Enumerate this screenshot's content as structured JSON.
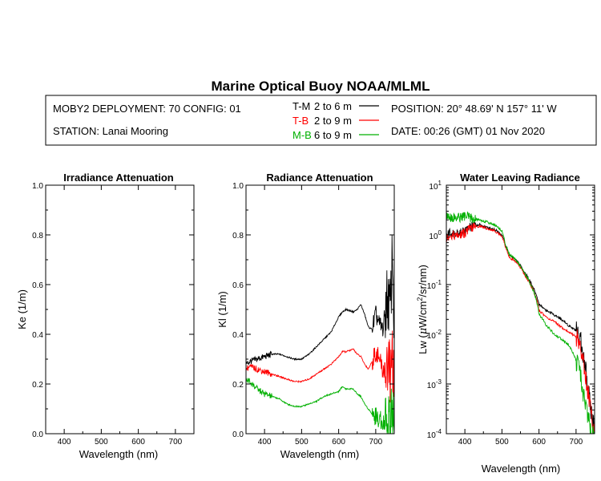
{
  "title": "Marine Optical Buoy NOAA/MLML",
  "header": {
    "deployment": "MOBY2 DEPLOYMENT: 70 CONFIG: 01",
    "station": "STATION: Lanai Mooring",
    "legend": [
      {
        "code": "T-M",
        "range": "2 to 6  m",
        "color": "#000000"
      },
      {
        "code": "T-B",
        "range": "2 to 9  m",
        "color": "#ff0000"
      },
      {
        "code": "M-B",
        "range": "6 to 9  m",
        "color": "#00b000"
      }
    ],
    "position": "POSITION: 20° 48.69' N   157° 11' W",
    "date": "DATE: 00:26 (GMT) 01 Nov 2020"
  },
  "chart_data": [
    {
      "type": "line",
      "title": "Irradiance Attenuation",
      "xlabel": "Wavelength (nm)",
      "ylabel": "Ke  (1/m)",
      "xlim": [
        350,
        750
      ],
      "ylim": [
        0.0,
        1.0
      ],
      "x_ticks": [
        "400",
        "500",
        "600",
        "700"
      ],
      "y_ticks": [
        "0.0",
        "0.2",
        "0.4",
        "0.6",
        "0.8",
        "1.0"
      ],
      "series": []
    },
    {
      "type": "line",
      "title": "Radiance Attenuation",
      "xlabel": "Wavelength (nm)",
      "ylabel": "Kl  (1/m)",
      "xlim": [
        350,
        750
      ],
      "ylim": [
        0.0,
        1.0
      ],
      "x_ticks": [
        "400",
        "500",
        "600",
        "700"
      ],
      "y_ticks": [
        "0.0",
        "0.2",
        "0.4",
        "0.6",
        "0.8",
        "1.0"
      ],
      "series": [
        {
          "name": "T-M",
          "color": "#000000",
          "x": [
            350,
            360,
            380,
            400,
            420,
            440,
            460,
            480,
            500,
            520,
            540,
            560,
            580,
            600,
            610,
            620,
            640,
            650,
            660,
            670,
            680,
            690,
            700,
            710,
            720,
            730,
            740,
            745,
            750
          ],
          "y": [
            0.28,
            0.29,
            0.3,
            0.31,
            0.32,
            0.32,
            0.31,
            0.3,
            0.3,
            0.32,
            0.35,
            0.38,
            0.41,
            0.47,
            0.49,
            0.5,
            0.49,
            0.5,
            0.52,
            0.48,
            0.43,
            0.42,
            0.48,
            0.44,
            0.42,
            0.55,
            0.5,
            0.75,
            0.4
          ]
        },
        {
          "name": "T-B",
          "color": "#ff0000",
          "x": [
            350,
            360,
            380,
            400,
            420,
            440,
            460,
            480,
            500,
            520,
            540,
            560,
            580,
            600,
            610,
            620,
            640,
            650,
            660,
            670,
            680,
            690,
            700,
            710,
            720,
            730,
            740,
            745,
            750
          ],
          "y": [
            0.26,
            0.27,
            0.26,
            0.25,
            0.24,
            0.23,
            0.22,
            0.21,
            0.21,
            0.22,
            0.24,
            0.26,
            0.28,
            0.31,
            0.33,
            0.33,
            0.34,
            0.32,
            0.31,
            0.28,
            0.26,
            0.29,
            0.33,
            0.3,
            0.25,
            0.28,
            0.24,
            0.32,
            0.2
          ]
        },
        {
          "name": "M-B",
          "color": "#00b000",
          "x": [
            350,
            360,
            380,
            400,
            420,
            440,
            460,
            480,
            500,
            520,
            540,
            560,
            580,
            600,
            610,
            620,
            640,
            650,
            660,
            670,
            680,
            690,
            700,
            710,
            720,
            730,
            740,
            745,
            750
          ],
          "y": [
            0.22,
            0.21,
            0.18,
            0.16,
            0.15,
            0.14,
            0.12,
            0.11,
            0.11,
            0.12,
            0.13,
            0.15,
            0.16,
            0.17,
            0.19,
            0.18,
            0.18,
            0.16,
            0.15,
            0.12,
            0.1,
            0.08,
            0.07,
            0.06,
            0.05,
            0.04,
            0.08,
            0.12,
            0.02
          ]
        }
      ]
    },
    {
      "type": "line",
      "title": "Water Leaving Radiance",
      "xlabel": "Wavelength (nm)",
      "ylabel_main": "Lw  (",
      "ylabel_mu": "μ",
      "ylabel_unit": "W/cm",
      "ylabel_sup": "2",
      "ylabel_tail": "/sr/nm)",
      "xlim": [
        350,
        750
      ],
      "ylim": [
        0.0001,
        10
      ],
      "yscale": "log",
      "x_ticks": [
        "400",
        "500",
        "600",
        "700"
      ],
      "y_ticks_base": "10",
      "y_ticks_exp": [
        "-4",
        "-3",
        "-2",
        "-1",
        "0",
        "1"
      ],
      "series": [
        {
          "name": "T-M",
          "color": "#000000",
          "x": [
            350,
            360,
            380,
            400,
            420,
            440,
            460,
            480,
            500,
            510,
            520,
            540,
            560,
            580,
            600,
            620,
            640,
            660,
            680,
            700,
            710,
            720,
            730,
            740,
            750
          ],
          "y": [
            1.0,
            1.1,
            1.0,
            1.2,
            1.5,
            1.6,
            1.4,
            1.3,
            1.0,
            0.6,
            0.4,
            0.3,
            0.18,
            0.1,
            0.04,
            0.03,
            0.025,
            0.02,
            0.015,
            0.012,
            0.009,
            0.0035,
            0.001,
            0.0003,
            0.00012
          ]
        },
        {
          "name": "T-B",
          "color": "#ff0000",
          "x": [
            350,
            360,
            380,
            400,
            420,
            440,
            460,
            480,
            500,
            510,
            520,
            540,
            560,
            580,
            600,
            620,
            640,
            660,
            680,
            700,
            710,
            720,
            730,
            740,
            750
          ],
          "y": [
            0.9,
            1.0,
            0.95,
            1.1,
            1.4,
            1.5,
            1.35,
            1.2,
            0.95,
            0.55,
            0.35,
            0.28,
            0.16,
            0.09,
            0.03,
            0.022,
            0.018,
            0.014,
            0.011,
            0.009,
            0.006,
            0.0025,
            0.0008,
            0.00025,
            0.0001
          ]
        },
        {
          "name": "M-B",
          "color": "#00b000",
          "x": [
            350,
            360,
            380,
            400,
            420,
            440,
            460,
            480,
            500,
            510,
            520,
            540,
            560,
            580,
            600,
            620,
            640,
            660,
            680,
            700,
            710,
            720,
            730,
            740,
            750
          ],
          "y": [
            2.5,
            2.3,
            2.2,
            2.4,
            2.1,
            2.0,
            1.8,
            1.6,
            1.2,
            0.6,
            0.4,
            0.3,
            0.17,
            0.09,
            0.025,
            0.015,
            0.01,
            0.008,
            0.006,
            0.003,
            0.0015,
            0.0006,
            0.00025,
            0.0001,
            0.0001
          ]
        }
      ]
    }
  ]
}
